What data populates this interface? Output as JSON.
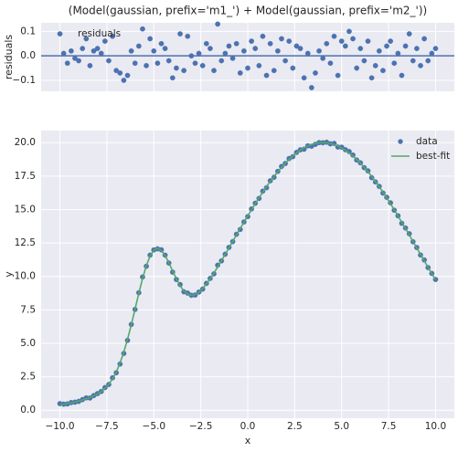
{
  "chart_data": [
    {
      "type": "scatter",
      "title": "(Model(gaussian, prefix='m1_') + Model(gaussian, prefix='m2_'))",
      "ylabel": "residuals",
      "x": [
        -10,
        -9.8,
        -9.6,
        -9.4,
        -9.2,
        -9,
        -8.8,
        -8.6,
        -8.4,
        -8.2,
        -8,
        -7.8,
        -7.6,
        -7.4,
        -7.2,
        -7,
        -6.8,
        -6.6,
        -6.4,
        -6.2,
        -6,
        -5.8,
        -5.6,
        -5.4,
        -5.2,
        -5,
        -4.8,
        -4.6,
        -4.4,
        -4.2,
        -4,
        -3.8,
        -3.6,
        -3.4,
        -3.2,
        -3,
        -2.8,
        -2.6,
        -2.4,
        -2.2,
        -2,
        -1.8,
        -1.6,
        -1.4,
        -1.2,
        -1,
        -0.8,
        -0.6,
        -0.4,
        -0.2,
        0,
        0.2,
        0.4,
        0.6,
        0.8,
        1,
        1.2,
        1.4,
        1.6,
        1.8,
        2,
        2.2,
        2.4,
        2.6,
        2.8,
        3,
        3.2,
        3.4,
        3.6,
        3.8,
        4,
        4.2,
        4.4,
        4.6,
        4.8,
        5,
        5.2,
        5.4,
        5.6,
        5.8,
        6,
        6.2,
        6.4,
        6.6,
        6.8,
        7,
        7.2,
        7.4,
        7.6,
        7.8,
        8,
        8.2,
        8.4,
        8.6,
        8.8,
        9,
        9.2,
        9.4,
        9.6,
        9.8,
        10
      ],
      "series": [
        {
          "name": "residuals",
          "color": "#4c72b0",
          "style": "markers",
          "values": [
            0.09,
            0.01,
            -0.03,
            0.02,
            -0.01,
            -0.02,
            0.03,
            0.07,
            -0.04,
            0.02,
            0.03,
            0.01,
            0.06,
            -0.02,
            0.08,
            -0.06,
            -0.07,
            -0.1,
            -0.08,
            0.02,
            -0.03,
            0.04,
            0.11,
            -0.04,
            0.07,
            0.02,
            -0.03,
            0.05,
            0.03,
            -0.02,
            -0.09,
            -0.05,
            0.09,
            -0.06,
            0.08,
            0,
            -0.03,
            0.01,
            -0.04,
            0.05,
            0.03,
            -0.06,
            0.13,
            -0.02,
            0.01,
            0.04,
            -0.01,
            0.05,
            -0.07,
            0.02,
            -0.05,
            0.06,
            0.03,
            -0.04,
            0.08,
            -0.08,
            0.05,
            -0.06,
            0.02,
            0.07,
            -0.02,
            0.06,
            -0.05,
            0.04,
            0.03,
            -0.09,
            0.01,
            -0.13,
            -0.07,
            0.02,
            -0.01,
            0.05,
            -0.03,
            0.08,
            -0.08,
            0.06,
            0.04,
            0.1,
            0.07,
            -0.05,
            0.03,
            -0.02,
            0.06,
            -0.09,
            -0.04,
            0.02,
            -0.06,
            0.04,
            0.06,
            -0.03,
            0.01,
            -0.08,
            0.04,
            0.09,
            -0.02,
            0.03,
            -0.04,
            0.07,
            -0.02,
            0.01,
            0.03
          ]
        }
      ],
      "hline": 0,
      "hline_color": "#4c72b0",
      "xlim": [
        -11,
        11
      ],
      "ylim": [
        -0.145,
        0.135
      ],
      "yticks": [
        {
          "value": -0.1,
          "label": "−0.1"
        },
        {
          "value": 0,
          "label": "0.0"
        },
        0.1
      ],
      "grid": true,
      "legend": "upper left"
    },
    {
      "type": "line",
      "xlabel": "x",
      "ylabel": "y",
      "x": [
        -10,
        -9.8,
        -9.6,
        -9.4,
        -9.2,
        -9,
        -8.8,
        -8.6,
        -8.4,
        -8.2,
        -8,
        -7.8,
        -7.6,
        -7.4,
        -7.2,
        -7,
        -6.8,
        -6.6,
        -6.4,
        -6.2,
        -6,
        -5.8,
        -5.6,
        -5.4,
        -5.2,
        -5,
        -4.8,
        -4.6,
        -4.4,
        -4.2,
        -4,
        -3.8,
        -3.6,
        -3.4,
        -3.2,
        -3,
        -2.8,
        -2.6,
        -2.4,
        -2.2,
        -2,
        -1.8,
        -1.6,
        -1.4,
        -1.2,
        -1,
        -0.8,
        -0.6,
        -0.4,
        -0.2,
        0,
        0.2,
        0.4,
        0.6,
        0.8,
        1,
        1.2,
        1.4,
        1.6,
        1.8,
        2,
        2.2,
        2.4,
        2.6,
        2.8,
        3,
        3.2,
        3.4,
        3.6,
        3.8,
        4,
        4.2,
        4.4,
        4.6,
        4.8,
        5,
        5.2,
        5.4,
        5.6,
        5.8,
        6,
        6.2,
        6.4,
        6.6,
        6.8,
        7,
        7.2,
        7.4,
        7.6,
        7.8,
        8,
        8.2,
        8.4,
        8.6,
        8.8,
        9,
        9.2,
        9.4,
        9.6,
        9.8,
        10
      ],
      "series": [
        {
          "name": "data",
          "color": "#4c72b0",
          "style": "markers",
          "values": [
            0.49,
            0.45,
            0.47,
            0.57,
            0.6,
            0.66,
            0.79,
            0.92,
            0.91,
            1.09,
            1.24,
            1.4,
            1.69,
            1.92,
            2.42,
            2.8,
            3.45,
            4.24,
            5.22,
            6.41,
            7.53,
            8.78,
            9.96,
            10.76,
            11.59,
            11.98,
            12.06,
            11.99,
            11.59,
            11,
            10.32,
            9.77,
            9.39,
            8.85,
            8.75,
            8.59,
            8.61,
            8.83,
            9.05,
            9.48,
            9.85,
            10.19,
            10.84,
            11.16,
            11.66,
            12.17,
            12.6,
            13.15,
            13.51,
            14.07,
            14.47,
            15.04,
            15.47,
            15.83,
            16.37,
            16.63,
            17.15,
            17.41,
            17.85,
            18.22,
            18.44,
            18.81,
            18.95,
            19.27,
            19.46,
            19.51,
            19.76,
            19.73,
            19.87,
            20,
            19.99,
            20.03,
            19.91,
            19.94,
            19.67,
            19.66,
            19.47,
            19.33,
            19.07,
            18.7,
            18.49,
            18.13,
            17.89,
            17.38,
            17.06,
            16.73,
            16.23,
            15.91,
            15.5,
            14.95,
            14.53,
            13.97,
            13.62,
            13.19,
            12.59,
            12.16,
            11.6,
            11.23,
            10.66,
            10.22,
            9.77
          ]
        },
        {
          "name": "best-fit",
          "color": "#55a868",
          "style": "line",
          "values": [
            0.4,
            0.44,
            0.5,
            0.55,
            0.61,
            0.68,
            0.76,
            0.85,
            0.95,
            1.07,
            1.21,
            1.39,
            1.63,
            1.94,
            2.34,
            2.86,
            3.52,
            4.34,
            5.3,
            6.39,
            7.56,
            8.74,
            9.85,
            10.8,
            11.52,
            11.96,
            12.09,
            11.94,
            11.56,
            11.02,
            10.41,
            9.82,
            9.3,
            8.91,
            8.67,
            8.59,
            8.64,
            8.82,
            9.09,
            9.43,
            9.82,
            10.25,
            10.71,
            11.18,
            11.65,
            12.13,
            12.61,
            13.1,
            13.58,
            14.05,
            14.52,
            14.98,
            15.44,
            15.87,
            16.29,
            16.71,
            17.1,
            17.47,
            17.83,
            18.15,
            18.46,
            18.75,
            19,
            19.23,
            19.43,
            19.6,
            19.75,
            19.86,
            19.94,
            19.98,
            20,
            19.98,
            19.94,
            19.86,
            19.75,
            19.6,
            19.43,
            19.23,
            19,
            18.75,
            18.46,
            18.15,
            17.83,
            17.47,
            17.1,
            16.71,
            16.29,
            15.87,
            15.44,
            14.98,
            14.52,
            14.05,
            13.58,
            13.1,
            12.61,
            12.13,
            11.64,
            11.16,
            10.68,
            10.21,
            9.74
          ]
        }
      ],
      "xlim": [
        -11,
        11
      ],
      "ylim": [
        -0.6,
        20.9
      ],
      "xticks": [
        {
          "value": -10,
          "label": "−10.0"
        },
        {
          "value": -7.5,
          "label": "−7.5"
        },
        {
          "value": -5,
          "label": "−5.0"
        },
        {
          "value": -2.5,
          "label": "−2.5"
        },
        {
          "value": 0,
          "label": "0.0"
        },
        2.5,
        {
          "value": 5,
          "label": "5.0"
        },
        7.5,
        {
          "value": 10,
          "label": "10.0"
        }
      ],
      "yticks": [
        {
          "value": 0,
          "label": "0.0"
        },
        2.5,
        {
          "value": 5,
          "label": "5.0"
        },
        7.5,
        {
          "value": 10,
          "label": "10.0"
        },
        12.5,
        {
          "value": 15,
          "label": "15.0"
        },
        17.5,
        {
          "value": 20,
          "label": "20.0"
        }
      ],
      "grid": true,
      "legend": "upper right"
    }
  ]
}
